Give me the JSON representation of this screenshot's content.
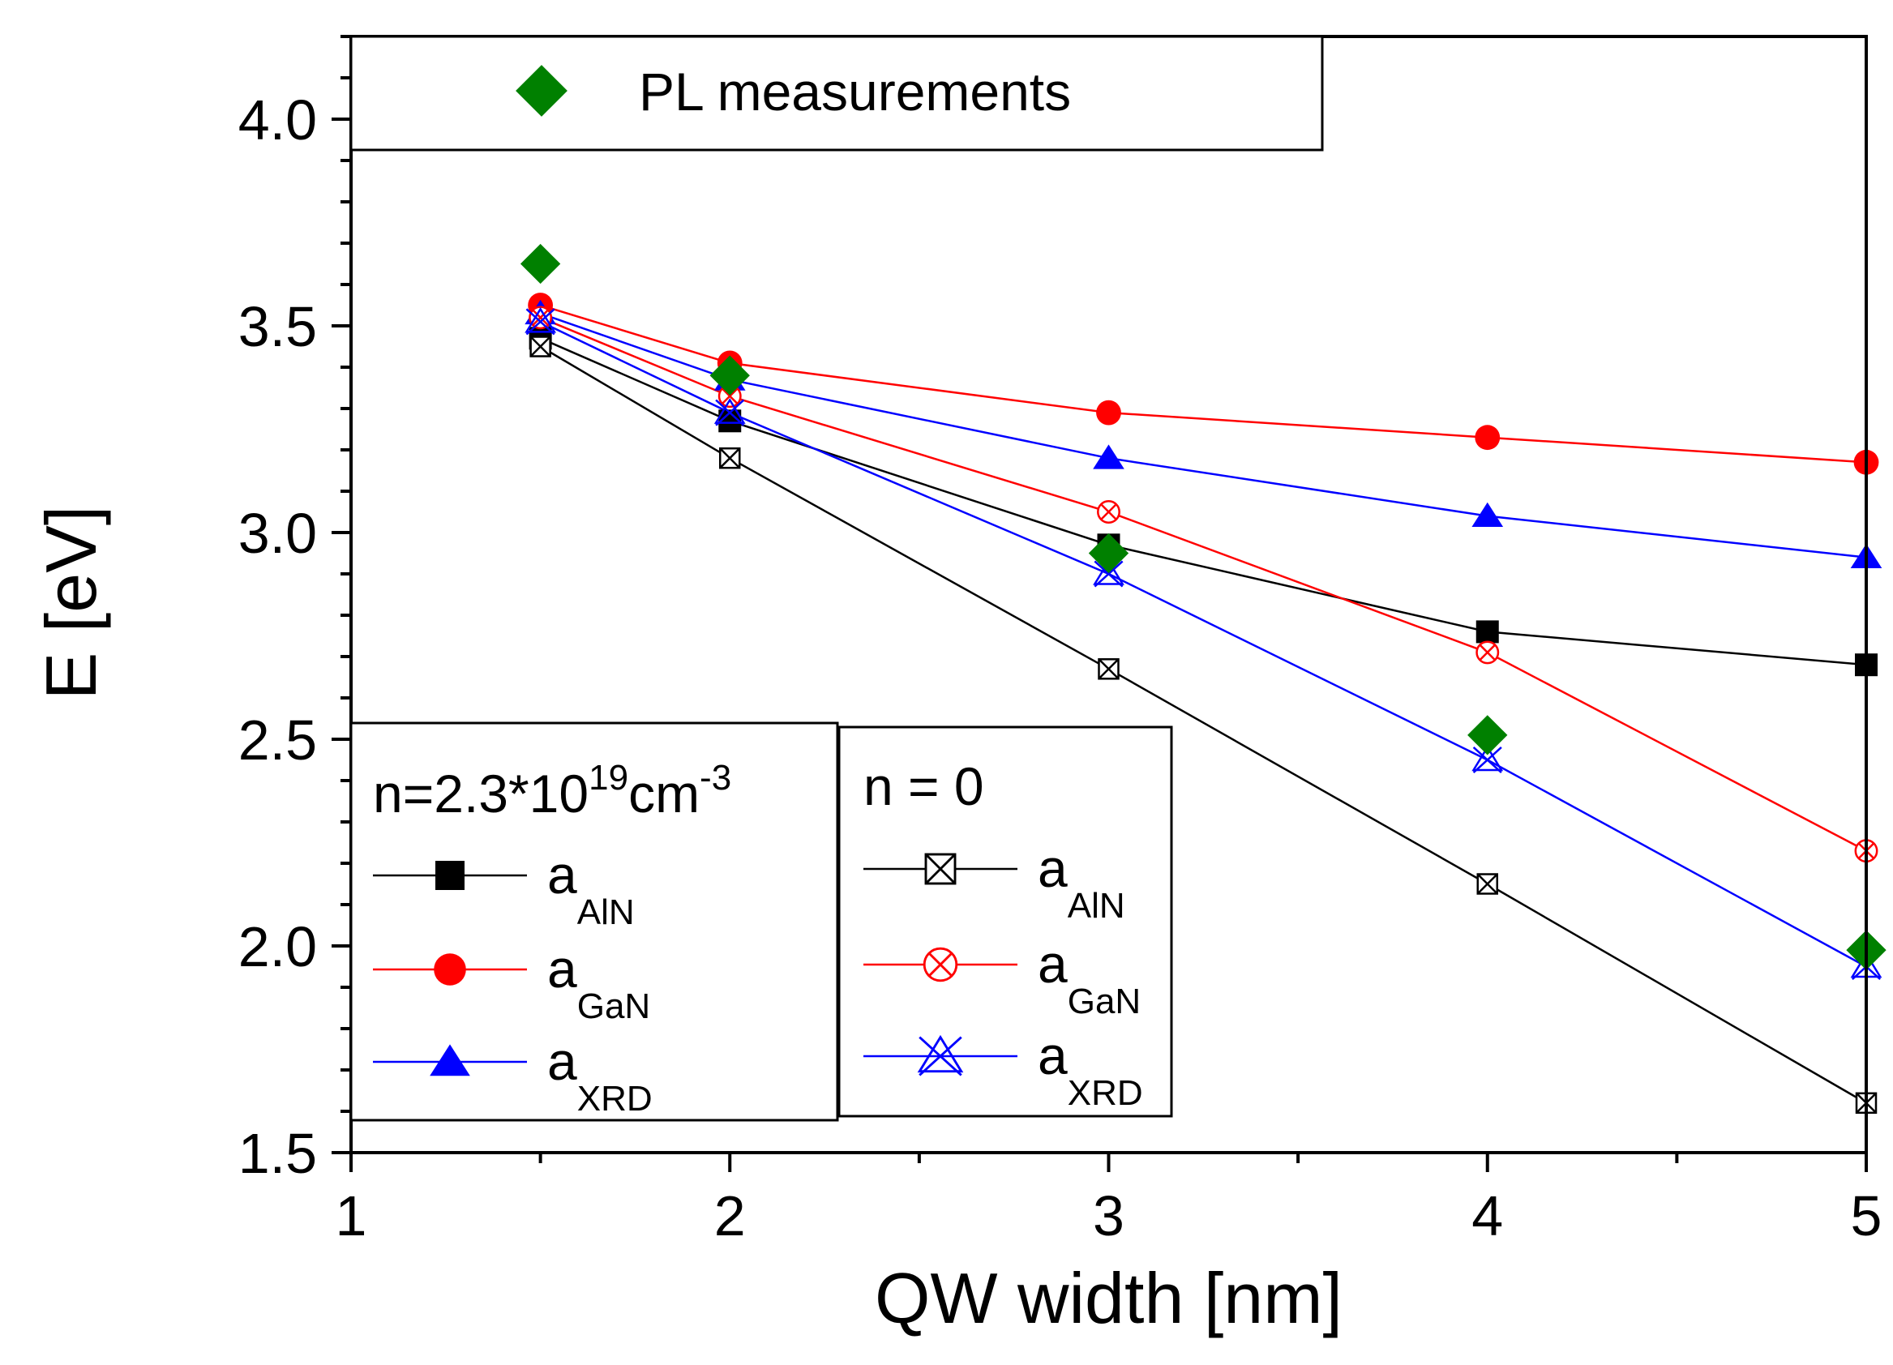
{
  "chart_data": {
    "type": "line",
    "title": "",
    "xlabel": "QW width [nm]",
    "ylabel": "E [eV]",
    "xlim": [
      1,
      5
    ],
    "ylim": [
      1.5,
      4.2
    ],
    "xticks": [
      "1",
      "2",
      "3",
      "4",
      "5"
    ],
    "yticks": [
      "1.5",
      "2.0",
      "2.5",
      "3.0",
      "3.5",
      "4.0"
    ],
    "series": [
      {
        "name": "a_AlN (n=2.3*10^19 cm^-3)",
        "group": "doped",
        "color": "#000000",
        "marker": "filled-square",
        "x": [
          1.5,
          2,
          3,
          4,
          5
        ],
        "y": [
          3.47,
          3.27,
          2.97,
          2.76,
          2.68
        ]
      },
      {
        "name": "a_GaN (n=2.3*10^19 cm^-3)",
        "group": "doped",
        "color": "#ff0000",
        "marker": "filled-circle",
        "x": [
          1.5,
          2,
          3,
          4,
          5
        ],
        "y": [
          3.55,
          3.41,
          3.29,
          3.23,
          3.17
        ]
      },
      {
        "name": "a_XRD (n=2.3*10^19 cm^-3)",
        "group": "doped",
        "color": "#0000ff",
        "marker": "filled-triangle",
        "x": [
          1.5,
          2,
          3,
          4,
          5
        ],
        "y": [
          3.53,
          3.37,
          3.18,
          3.04,
          2.94
        ]
      },
      {
        "name": "a_AlN (n = 0)",
        "group": "undoped",
        "color": "#000000",
        "marker": "crossed-square",
        "x": [
          1.5,
          2,
          3,
          4,
          5
        ],
        "y": [
          3.45,
          3.18,
          2.67,
          2.15,
          1.62
        ]
      },
      {
        "name": "a_GaN (n = 0)",
        "group": "undoped",
        "color": "#ff0000",
        "marker": "crossed-circle",
        "x": [
          1.5,
          2,
          3,
          4,
          5
        ],
        "y": [
          3.52,
          3.33,
          3.05,
          2.71,
          2.23
        ]
      },
      {
        "name": "a_XRD (n = 0)",
        "group": "undoped",
        "color": "#0000ff",
        "marker": "crossed-triangle",
        "x": [
          1.5,
          2,
          3,
          4,
          5
        ],
        "y": [
          3.51,
          3.29,
          2.9,
          2.45,
          1.95
        ]
      },
      {
        "name": "PL measurements",
        "group": "pl",
        "color": "#008000",
        "marker": "filled-diamond",
        "line": false,
        "x": [
          1.5,
          2,
          3,
          4,
          5
        ],
        "y": [
          3.65,
          3.38,
          2.95,
          2.51,
          1.99
        ]
      }
    ],
    "legends": {
      "pl": {
        "label": "PL measurements"
      },
      "doped": {
        "header_base": "n=2.3*10",
        "header_exp": "19",
        "header_unit": "cm",
        "header_unit_exp": "-3",
        "items": [
          {
            "base": "a",
            "sub": "AlN"
          },
          {
            "base": "a",
            "sub": "GaN"
          },
          {
            "base": "a",
            "sub": "XRD"
          }
        ]
      },
      "undoped": {
        "header": "n = 0",
        "items": [
          {
            "base": "a",
            "sub": "AlN"
          },
          {
            "base": "a",
            "sub": "GaN"
          },
          {
            "base": "a",
            "sub": "XRD"
          }
        ]
      }
    }
  }
}
